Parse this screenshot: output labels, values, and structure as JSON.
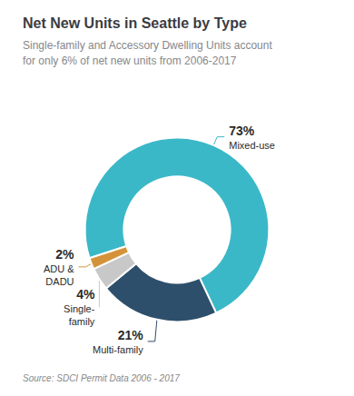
{
  "chart_data": {
    "type": "pie",
    "title": "Net New Units in Seattle by Type",
    "subtitle": "Single-family and Accessory Dwelling Units account\nfor only 6% of net new units from 2006-2017",
    "source": "Source: SDCI Permit Data 2006 - 2017",
    "categories": [
      "Mixed-use",
      "Multi-family",
      "Single-\nfamily",
      "ADU &\nDADU"
    ],
    "values": [
      73,
      21,
      4,
      2
    ],
    "value_labels": [
      "73%",
      "21%",
      "4%",
      "2%"
    ],
    "colors": [
      "#3ab8c8",
      "#2d4f6b",
      "#c8c8c8",
      "#d4933a"
    ],
    "data_labels": true
  }
}
